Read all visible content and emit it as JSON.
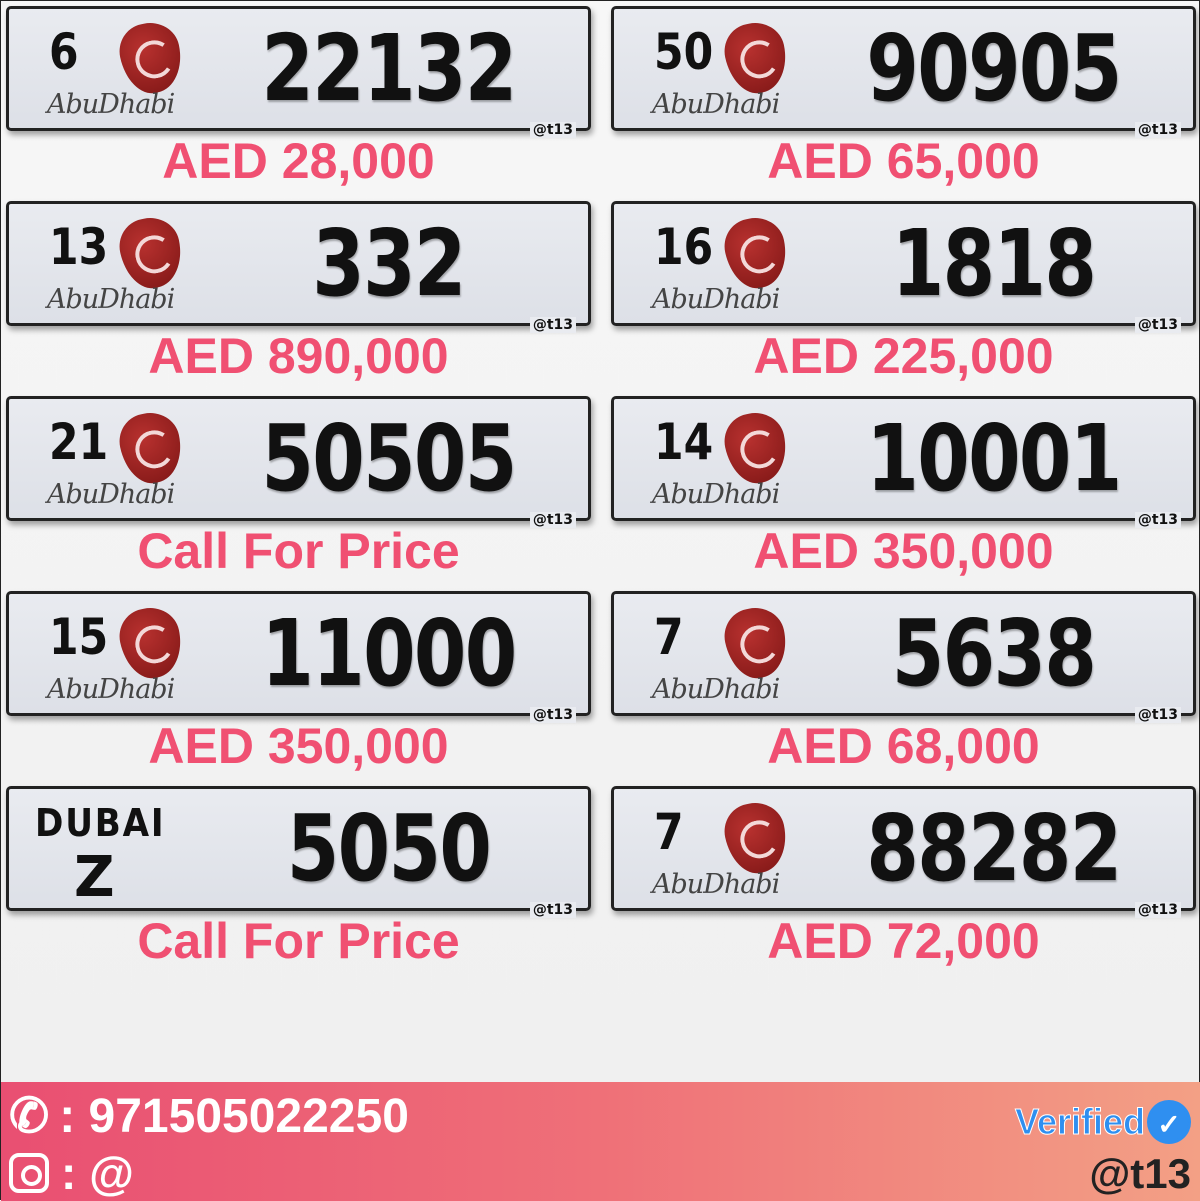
{
  "plates": [
    {
      "code": "6",
      "emirate": "AbuDhabi",
      "number": "22132",
      "watermark": "@t13",
      "price": "AED 28,000"
    },
    {
      "code": "50",
      "emirate": "AbuDhabi",
      "number": "90905",
      "watermark": "@t13",
      "price": "AED 65,000"
    },
    {
      "code": "13",
      "emirate": "AbuDhabi",
      "number": "332",
      "watermark": "@t13",
      "price": "AED 890,000"
    },
    {
      "code": "16",
      "emirate": "AbuDhabi",
      "number": "1818",
      "watermark": "@t13",
      "price": "AED 225,000"
    },
    {
      "code": "21",
      "emirate": "AbuDhabi",
      "number": "50505",
      "watermark": "@t13",
      "price": "Call For Price"
    },
    {
      "code": "14",
      "emirate": "AbuDhabi",
      "number": "10001",
      "watermark": "@t13",
      "price": "AED 350,000"
    },
    {
      "code": "15",
      "emirate": "AbuDhabi",
      "number": "11000",
      "watermark": "@t13",
      "price": "AED 350,000"
    },
    {
      "code": "7",
      "emirate": "AbuDhabi",
      "number": "5638",
      "watermark": "@t13",
      "price": "AED 68,000"
    },
    {
      "code": "Z",
      "emirate": "DUBAI",
      "number": "5050",
      "watermark": "@t13",
      "price": "Call For Price"
    },
    {
      "code": "7",
      "emirate": "AbuDhabi",
      "number": "88282",
      "watermark": "@t13",
      "price": "AED 72,000"
    }
  ],
  "footer": {
    "phone": ": 971505022250",
    "instagram": ": @",
    "verified": "Verified",
    "handle": "@t13",
    "phone_icon": "phone-icon",
    "instagram_icon": "instagram-icon"
  },
  "colors": {
    "price": "#f05072",
    "verified": "#2f8ff0"
  }
}
